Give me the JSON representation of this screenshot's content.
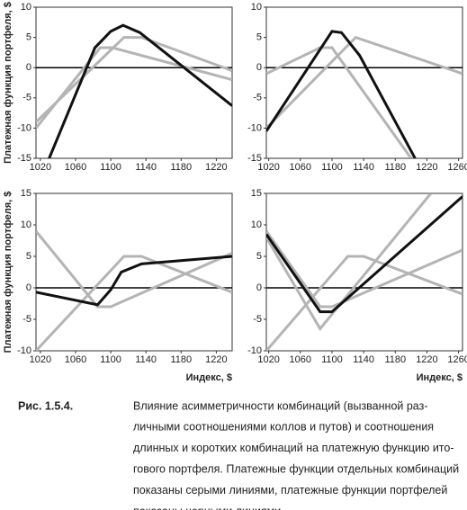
{
  "chart_data": [
    {
      "type": "line",
      "ylabel": "Платежная функция портфеля, $",
      "xlim": [
        1015,
        1238
      ],
      "ylim": [
        -15,
        10
      ],
      "xticks": [
        1020,
        1060,
        1100,
        1140,
        1180,
        1220
      ],
      "yticks": [
        -15,
        -10,
        -5,
        0,
        5,
        10
      ],
      "series": [
        {
          "color": "#b4b4b4",
          "x": [
            1015,
            1088,
            1102,
            1238
          ],
          "values": [
            -10,
            3.3,
            3.3,
            -2
          ]
        },
        {
          "color": "#b4b4b4",
          "x": [
            1015,
            1115,
            1135,
            1238
          ],
          "values": [
            -9,
            5,
            5,
            -0.5
          ]
        },
        {
          "color": "#111111",
          "x": [
            1030,
            1082,
            1100,
            1114,
            1133,
            1238
          ],
          "values": [
            -15,
            3.3,
            6,
            7,
            5.8,
            -6.3
          ]
        }
      ]
    },
    {
      "type": "line",
      "xlim": [
        1017,
        1265
      ],
      "ylim": [
        -15,
        10
      ],
      "xticks": [
        1020,
        1060,
        1100,
        1140,
        1180,
        1220,
        1260
      ],
      "yticks": [
        -15,
        -10,
        -5,
        0,
        5,
        10
      ],
      "series": [
        {
          "color": "#b4b4b4",
          "x": [
            1017,
            1085,
            1100,
            1200
          ],
          "values": [
            -1,
            3.3,
            3.3,
            -15
          ]
        },
        {
          "color": "#b4b4b4",
          "x": [
            1017,
            1130,
            1265
          ],
          "values": [
            -10,
            5,
            -1
          ]
        },
        {
          "color": "#111111",
          "x": [
            1017,
            1100,
            1112,
            1135,
            1205
          ],
          "values": [
            -10.5,
            6,
            5.8,
            2,
            -15
          ]
        }
      ]
    },
    {
      "type": "line",
      "ylabel": "Платежная функция портфеля, $",
      "xlabel": "Индекс, $",
      "xlim": [
        1015,
        1238
      ],
      "ylim": [
        -10,
        15
      ],
      "xticks": [
        1020,
        1060,
        1100,
        1140,
        1180,
        1220
      ],
      "yticks": [
        -10,
        -5,
        0,
        5,
        10,
        15
      ],
      "series": [
        {
          "color": "#b4b4b4",
          "x": [
            1015,
            1085,
            1100,
            1238
          ],
          "values": [
            9,
            -3,
            -3,
            5.5
          ]
        },
        {
          "color": "#b4b4b4",
          "x": [
            1015,
            1115,
            1135,
            1238
          ],
          "values": [
            -10,
            5,
            5,
            -0.7
          ]
        },
        {
          "color": "#111111",
          "x": [
            1015,
            1085,
            1100,
            1112,
            1135,
            1238
          ],
          "values": [
            -0.7,
            -2.7,
            -0.3,
            2.5,
            3.8,
            5
          ]
        }
      ]
    },
    {
      "type": "line",
      "xlabel": "Индекс, $",
      "xlim": [
        1017,
        1265
      ],
      "ylim": [
        -10,
        15
      ],
      "xticks": [
        1020,
        1060,
        1100,
        1140,
        1180,
        1220,
        1260
      ],
      "yticks": [
        -10,
        -5,
        0,
        5,
        10,
        15
      ],
      "series": [
        {
          "color": "#b4b4b4",
          "x": [
            1017,
            1085,
            1100,
            1265
          ],
          "values": [
            9,
            -3,
            -3,
            6
          ]
        },
        {
          "color": "#b4b4b4",
          "x": [
            1017,
            1120,
            1140,
            1265
          ],
          "values": [
            -10,
            5,
            5,
            -1
          ]
        },
        {
          "color": "#b4b4b4",
          "x": [
            1017,
            1085,
            1225
          ],
          "values": [
            8,
            -6.5,
            15
          ]
        },
        {
          "color": "#111111",
          "x": [
            1017,
            1085,
            1100,
            1265
          ],
          "values": [
            8.5,
            -3.8,
            -3.8,
            14.5
          ]
        }
      ]
    }
  ],
  "caption": {
    "label": "Рис. 1.5.4.",
    "lines": [
      "Влияние асимметричности комбинаций (вызванной раз-",
      "личными соотношениями коллов и путов) и соотношения",
      "длинных и коротких комбинаций на платежную функцию ито-",
      "гового портфеля. Платежные функции отдельных комбинаций",
      "показаны серыми линиями, платежные функции портфелей",
      "показаны черными линиями"
    ]
  }
}
